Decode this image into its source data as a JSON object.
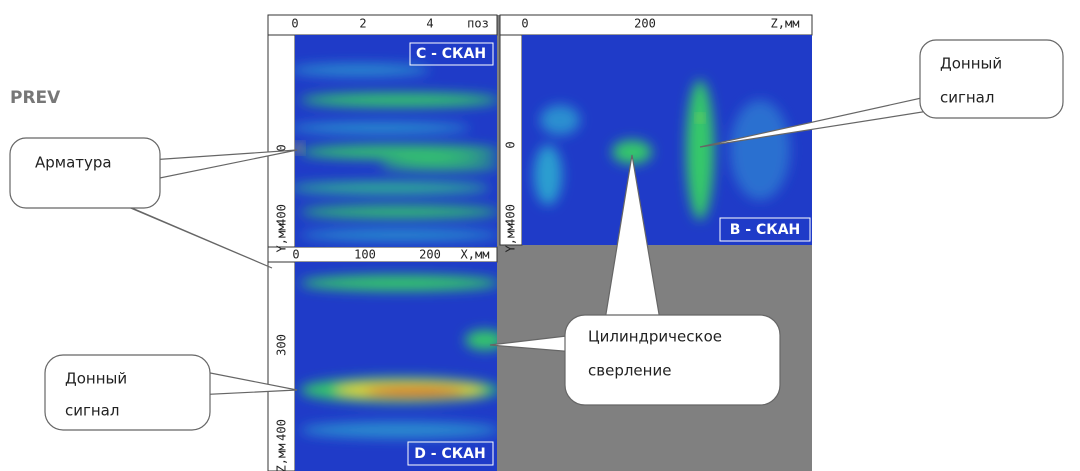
{
  "prev": "PREV",
  "panels": [
    {
      "label": "С - СКАН",
      "top_axis": [
        "0",
        "2",
        "4",
        "поз"
      ],
      "left_axis": [
        "0",
        "400",
        "Y,мм"
      ]
    },
    {
      "label": "B - СКАН",
      "top_axis": [
        "0",
        "200",
        "Z,мм"
      ],
      "left_axis": [
        "0",
        "400",
        "Y,мм"
      ]
    },
    {
      "label": "D - СКАН",
      "top_axis": [
        "0",
        "100",
        "200",
        "X,мм"
      ],
      "left_axis": [
        "300",
        "400",
        "Z,мм"
      ]
    }
  ],
  "callouts": [
    {
      "lines": [
        "Арматура"
      ]
    },
    {
      "lines": [
        "Донный",
        "сигнал"
      ]
    },
    {
      "lines": [
        "Цилиндрическое",
        "сверление"
      ]
    },
    {
      "lines": [
        "Донный",
        "сигнал"
      ]
    }
  ]
}
